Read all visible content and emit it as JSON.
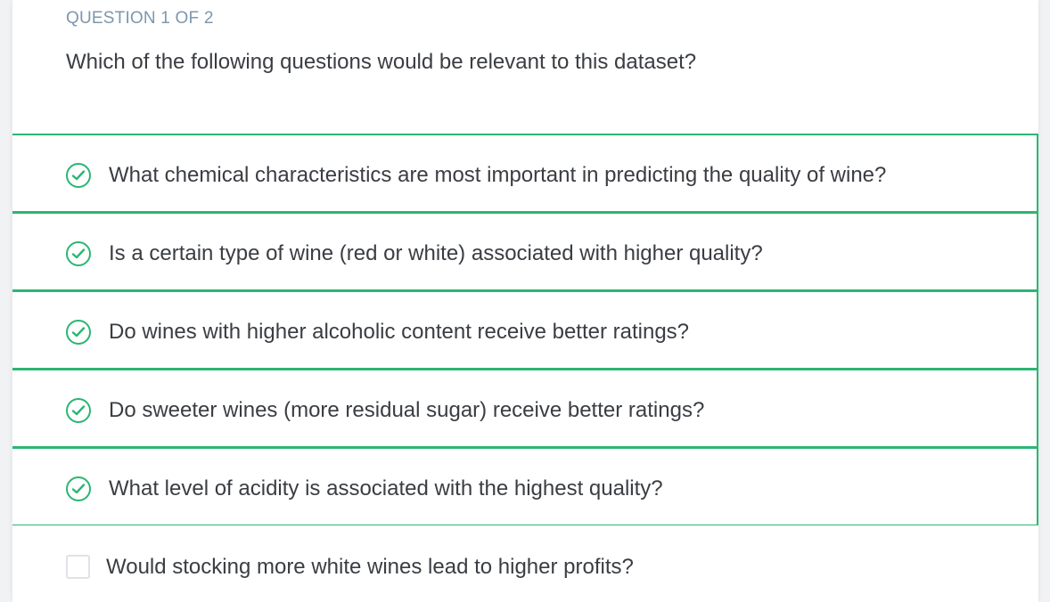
{
  "quiz": {
    "question_label": "QUESTION 1 OF 2",
    "question_text": "Which of the following questions would be relevant to this dataset?",
    "accent_color": "#2bb673",
    "options": [
      {
        "label": "What chemical characteristics are most important in predicting the quality of wine?",
        "selected": true,
        "icon": "check-circle-icon"
      },
      {
        "label": "Is a certain type of wine (red or white) associated with higher quality?",
        "selected": true,
        "icon": "check-circle-icon"
      },
      {
        "label": "Do wines with higher alcoholic content receive better ratings?",
        "selected": true,
        "icon": "check-circle-icon"
      },
      {
        "label": "Do sweeter wines (more residual sugar) receive better ratings?",
        "selected": true,
        "icon": "check-circle-icon"
      },
      {
        "label": "What level of acidity is associated with the highest quality?",
        "selected": true,
        "icon": "check-circle-icon"
      },
      {
        "label": "Would stocking more white wines lead to higher profits?",
        "selected": false,
        "icon": "empty-checkbox"
      }
    ]
  }
}
